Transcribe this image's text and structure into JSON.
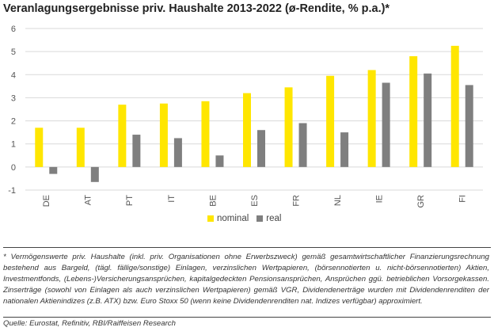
{
  "title": "Veranlagungsergebnisse priv. Haushalte 2013-2022 (ø-Rendite, % p.a.)*",
  "colors": {
    "nominal": "#FFE600",
    "real": "#7F7F7F",
    "grid": "#D9D9D9",
    "axis_text": "#555555"
  },
  "chart_data": {
    "type": "bar",
    "categories": [
      "DE",
      "AT",
      "PT",
      "IT",
      "BE",
      "ES",
      "FR",
      "NL",
      "IE",
      "GR",
      "FI"
    ],
    "series": [
      {
        "name": "nominal",
        "values": [
          1.7,
          1.7,
          2.7,
          2.75,
          2.85,
          3.2,
          3.45,
          3.95,
          4.2,
          4.8,
          5.25
        ]
      },
      {
        "name": "real",
        "values": [
          -0.3,
          -0.65,
          1.4,
          1.25,
          0.5,
          1.6,
          1.9,
          1.5,
          3.65,
          4.05,
          3.55
        ]
      }
    ],
    "ylim": [
      -1,
      6
    ],
    "yticks": [
      -1,
      0,
      1,
      2,
      3,
      4,
      5,
      6
    ],
    "grid": true,
    "legend": "bottom-center",
    "xlabel": "",
    "ylabel": ""
  },
  "legend": {
    "nominal_label": "nominal",
    "real_label": "real"
  },
  "footnote": "* Vermögenswerte priv. Haushalte (inkl. priv. Organisationen ohne Erwerbszweck) gemäß gesamtwirtschaftlicher Finanzierungsrechnung bestehend aus Bargeld, (tägl. fällige/sonstige) Einlagen, verzinslichen Wertpapieren, (börsennotierten u. nicht-börsennotierten) Aktien, Investmentfonds, (Lebens-)Versicherungsansprüchen, kapitalgedeckten Pensionsansprüchen, Ansprüchen ggü. betrieblichen Vorsorgekassen. Zinserträge (sowohl von Einlagen als auch verzinslichen Wertpapieren) gemäß VGR, Dividendenerträge wurden mit Dividendenrenditen der nationalen Aktienindizes (z.B. ATX) bzw. Euro Stoxx 50 (wenn keine Dividendenrenditen nat. Indizes verfügbar) approximiert.",
  "source": "Quelle: Eurostat, Refinitiv, RBI/Raiffeisen Research"
}
